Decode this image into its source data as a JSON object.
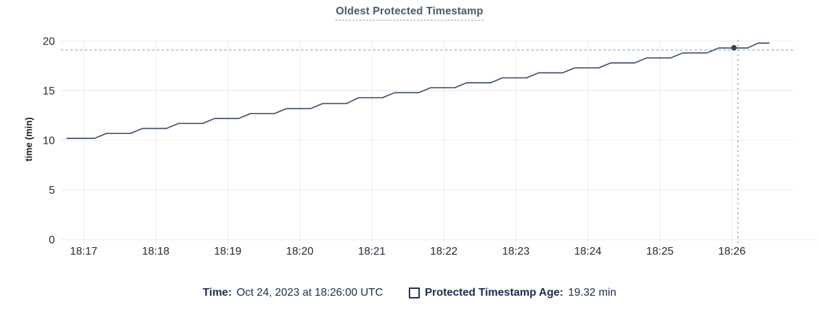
{
  "chart": {
    "title": "Oldest Protected Timestamp",
    "ylabel": "time (min)"
  },
  "chart_data": {
    "type": "line",
    "title": "Oldest Protected Timestamp",
    "xlabel": "",
    "ylabel": "time (min)",
    "ylim": [
      0,
      20
    ],
    "yticks": [
      0,
      5,
      10,
      15,
      20
    ],
    "xticks": [
      "18:17",
      "18:18",
      "18:19",
      "18:20",
      "18:21",
      "18:22",
      "18:23",
      "18:24",
      "18:25",
      "18:26"
    ],
    "grid": true,
    "legend_position": "bottom",
    "series": [
      {
        "name": "Protected Timestamp Age",
        "unit": "min",
        "points": [
          [
            "18:16:46",
            10.2
          ],
          [
            "18:17:09",
            10.2
          ],
          [
            "18:17:19",
            10.7
          ],
          [
            "18:17:39",
            10.7
          ],
          [
            "18:17:49",
            11.2
          ],
          [
            "18:18:09",
            11.2
          ],
          [
            "18:18:19",
            11.7
          ],
          [
            "18:18:39",
            11.7
          ],
          [
            "18:18:49",
            12.2
          ],
          [
            "18:19:09",
            12.2
          ],
          [
            "18:19:19",
            12.7
          ],
          [
            "18:19:39",
            12.7
          ],
          [
            "18:19:49",
            13.2
          ],
          [
            "18:20:09",
            13.2
          ],
          [
            "18:20:19",
            13.7
          ],
          [
            "18:20:39",
            13.7
          ],
          [
            "18:20:49",
            14.3
          ],
          [
            "18:21:09",
            14.3
          ],
          [
            "18:21:19",
            14.8
          ],
          [
            "18:21:39",
            14.8
          ],
          [
            "18:21:49",
            15.3
          ],
          [
            "18:22:09",
            15.3
          ],
          [
            "18:22:19",
            15.8
          ],
          [
            "18:22:39",
            15.8
          ],
          [
            "18:22:49",
            16.3
          ],
          [
            "18:23:09",
            16.3
          ],
          [
            "18:23:19",
            16.8
          ],
          [
            "18:23:39",
            16.8
          ],
          [
            "18:23:49",
            17.3
          ],
          [
            "18:24:09",
            17.3
          ],
          [
            "18:24:19",
            17.8
          ],
          [
            "18:24:39",
            17.8
          ],
          [
            "18:24:49",
            18.3
          ],
          [
            "18:25:09",
            18.3
          ],
          [
            "18:25:19",
            18.8
          ],
          [
            "18:25:39",
            18.8
          ],
          [
            "18:25:49",
            19.3
          ],
          [
            "18:26:13",
            19.3
          ],
          [
            "18:26:22",
            19.8
          ],
          [
            "18:26:31",
            19.8
          ]
        ]
      }
    ],
    "hover_point": {
      "time": "18:26:00",
      "value": 19.32
    },
    "cursor_crosshair": {
      "time": "18:26:05",
      "value": 19.1
    },
    "colors": {
      "line": "#3f4e68",
      "dot": "#344260",
      "crosshair": "#a6b7c1",
      "grid": "#e9e9e9",
      "tick_text": "#242a35",
      "title": "#475872",
      "legend_text": "#1c2b4d"
    }
  },
  "legend": {
    "time_label": "Time:",
    "time_value": "Oct 24, 2023 at 18:26:00 UTC",
    "series_label": "Protected Timestamp Age:",
    "series_value": "19.32 min"
  }
}
